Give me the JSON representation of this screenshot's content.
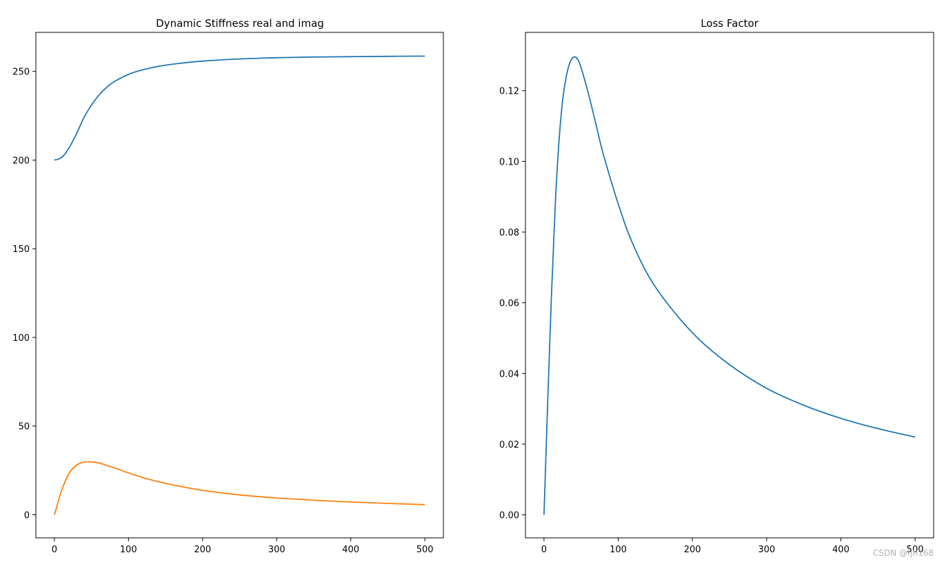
{
  "chart_data": [
    {
      "type": "line",
      "title": "Dynamic Stiffness real and imag",
      "xlabel": "",
      "ylabel": "",
      "xlim": [
        -25,
        525
      ],
      "ylim": [
        -13,
        272
      ],
      "xticks": [
        0,
        100,
        200,
        300,
        400,
        500
      ],
      "xtick_labels": [
        "0",
        "100",
        "200",
        "300",
        "400",
        "500"
      ],
      "yticks": [
        0,
        50,
        100,
        150,
        200,
        250
      ],
      "ytick_labels": [
        "0",
        "50",
        "100",
        "150",
        "200",
        "250"
      ],
      "grid": false,
      "legend": "none",
      "series": [
        {
          "color": "#1f77b4",
          "x": [
            0,
            10,
            20,
            30,
            40,
            50,
            60,
            70,
            80,
            100,
            120,
            150,
            200,
            250,
            300,
            350,
            400,
            450,
            500
          ],
          "y": [
            200,
            201.5,
            207,
            215,
            224,
            231,
            236.5,
            240.8,
            244,
            248.3,
            251,
            253.5,
            255.8,
            257,
            257.7,
            258.1,
            258.3,
            258.5,
            258.6
          ]
        },
        {
          "color": "#ff7f0e",
          "x": [
            0,
            10,
            20,
            30,
            40,
            50,
            60,
            70,
            80,
            100,
            120,
            150,
            200,
            250,
            300,
            350,
            400,
            450,
            500
          ],
          "y": [
            0,
            14,
            23.5,
            28,
            29.7,
            29.8,
            29.2,
            27.9,
            26.6,
            23.6,
            20.9,
            17.7,
            13.8,
            11.2,
            9.5,
            8.2,
            7.2,
            6.4,
            5.7
          ]
        }
      ]
    },
    {
      "type": "line",
      "title": "Loss Factor",
      "xlabel": "",
      "ylabel": "",
      "xlim": [
        -25,
        525
      ],
      "ylim": [
        -0.0065,
        0.1365
      ],
      "xticks": [
        0,
        100,
        200,
        300,
        400,
        500
      ],
      "xtick_labels": [
        "0",
        "100",
        "200",
        "300",
        "400",
        "500"
      ],
      "yticks": [
        0,
        0.02,
        0.04,
        0.06,
        0.08,
        0.1,
        0.12
      ],
      "ytick_labels": [
        "0.00",
        "0.02",
        "0.04",
        "0.06",
        "0.08",
        "0.10",
        "0.12"
      ],
      "grid": false,
      "legend": "none",
      "series": [
        {
          "color": "#1f77b4",
          "x": [
            0,
            5,
            10,
            15,
            20,
            25,
            30,
            35,
            40,
            45,
            50,
            60,
            70,
            80,
            100,
            120,
            150,
            200,
            250,
            300,
            350,
            400,
            450,
            500
          ],
          "y": [
            0,
            0.032,
            0.062,
            0.087,
            0.105,
            0.117,
            0.124,
            0.128,
            0.1295,
            0.129,
            0.1265,
            0.119,
            0.1105,
            0.102,
            0.088,
            0.0765,
            0.0645,
            0.0515,
            0.0425,
            0.0358,
            0.031,
            0.0273,
            0.0244,
            0.022
          ]
        }
      ]
    }
  ],
  "watermark": "CSDN @fjh168"
}
